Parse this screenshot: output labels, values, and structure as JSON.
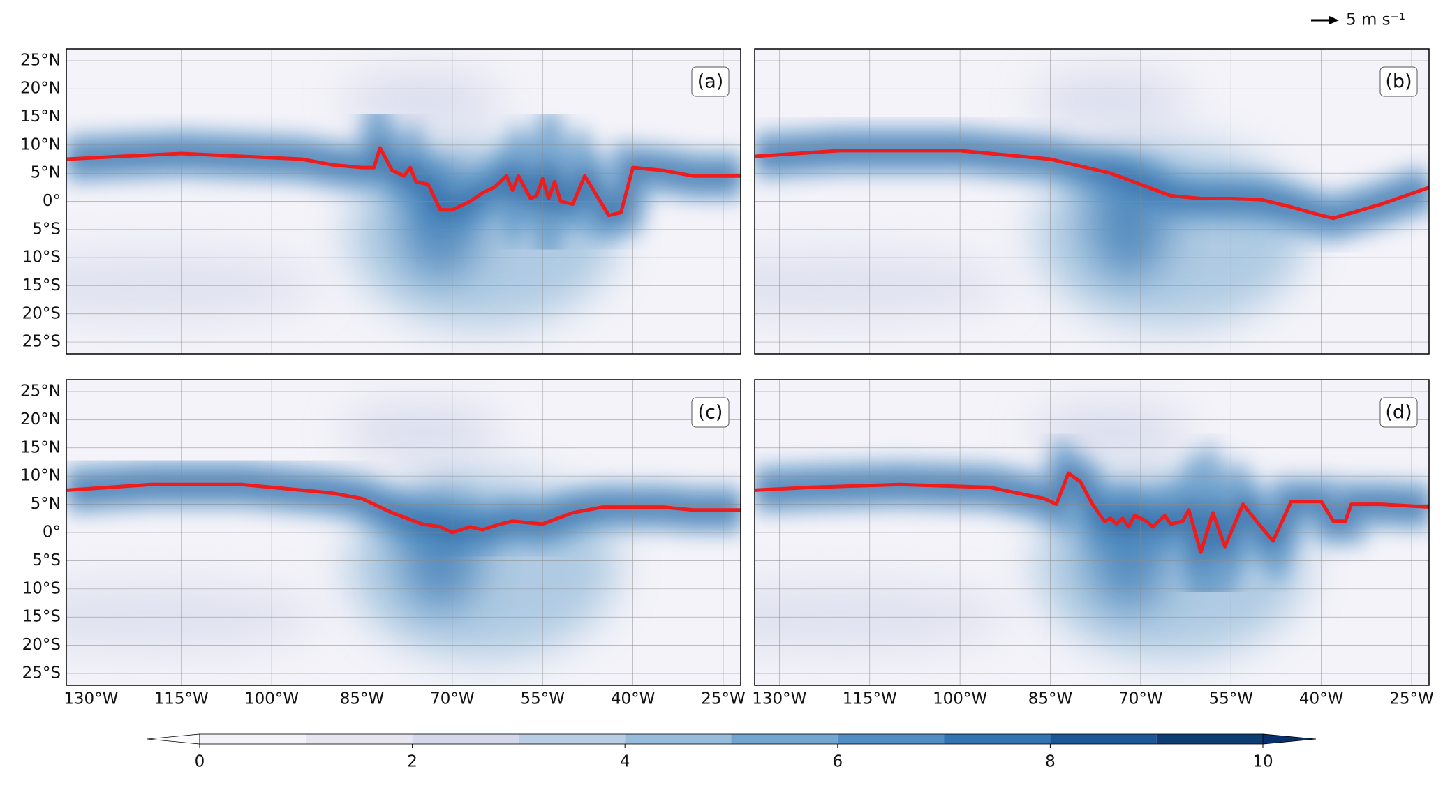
{
  "figure": {
    "scale_label": "5 m s⁻¹",
    "xlim": [
      -134.1,
      -22.1
    ],
    "ylim": [
      -27.1,
      27.1
    ],
    "xticks": [
      {
        "value": -130,
        "label": "130°W"
      },
      {
        "value": -115,
        "label": "115°W"
      },
      {
        "value": -100,
        "label": "100°W"
      },
      {
        "value": -85,
        "label": "85°W"
      },
      {
        "value": -70,
        "label": "70°W"
      },
      {
        "value": -55,
        "label": "55°W"
      },
      {
        "value": -40,
        "label": "40°W"
      },
      {
        "value": -25,
        "label": "25°W"
      }
    ],
    "yticks": [
      {
        "value": 25,
        "label": "25°N"
      },
      {
        "value": 20,
        "label": "20°N"
      },
      {
        "value": 15,
        "label": "15°N"
      },
      {
        "value": 10,
        "label": "10°N"
      },
      {
        "value": 5,
        "label": "5°N"
      },
      {
        "value": 0,
        "label": "0°"
      },
      {
        "value": -5,
        "label": "5°S"
      },
      {
        "value": -10,
        "label": "10°S"
      },
      {
        "value": -15,
        "label": "15°S"
      },
      {
        "value": -20,
        "label": "20°S"
      },
      {
        "value": -25,
        "label": "25°S"
      }
    ],
    "line_color": "#ee1c1c",
    "panels": [
      {
        "label": "(a)",
        "itcz": {
          "lon": [
            -134,
            -125,
            -115,
            -105,
            -95,
            -90,
            -85,
            -83,
            -82,
            -80,
            -78,
            -77,
            -76,
            -74,
            -72,
            -70,
            -67,
            -65,
            -63,
            -61,
            -60,
            -59,
            -57,
            -56,
            -55,
            -54,
            -53,
            -52,
            -50,
            -48,
            -46,
            -44,
            -42,
            -40,
            -35,
            -30,
            -25,
            -22
          ],
          "lat": [
            7.5,
            8,
            8.5,
            8,
            7.5,
            6.5,
            6,
            6,
            9.5,
            5.5,
            4.5,
            6,
            3.5,
            3,
            -1.5,
            -1.5,
            0,
            1.5,
            2.5,
            4.5,
            2,
            4.5,
            0.5,
            1,
            4,
            0.5,
            3.5,
            0,
            -0.5,
            4.5,
            1,
            -2.5,
            -2,
            6,
            5.5,
            4.5,
            4.5,
            4.5
          ]
        }
      },
      {
        "label": "(b)",
        "itcz": {
          "lon": [
            -134,
            -120,
            -100,
            -90,
            -85,
            -75,
            -70,
            -65,
            -60,
            -55,
            -50,
            -45,
            -40,
            -38,
            -30,
            -22
          ],
          "lat": [
            8,
            9,
            9,
            8,
            7.5,
            5,
            3,
            1,
            0.5,
            0.5,
            0.3,
            -1,
            -2.5,
            -3,
            -0.5,
            2.5
          ]
        }
      },
      {
        "label": "(c)",
        "itcz": {
          "lon": [
            -134,
            -120,
            -105,
            -90,
            -85,
            -80,
            -75,
            -72,
            -70,
            -67,
            -65,
            -62,
            -60,
            -55,
            -50,
            -45,
            -40,
            -35,
            -30,
            -22
          ],
          "lat": [
            7.5,
            8.5,
            8.5,
            7,
            6,
            3.5,
            1.5,
            1,
            0,
            1,
            0.5,
            1.5,
            2,
            1.5,
            3.5,
            4.5,
            4.5,
            4.5,
            4,
            4
          ]
        }
      },
      {
        "label": "(d)",
        "itcz": {
          "lon": [
            -134,
            -125,
            -110,
            -95,
            -86,
            -84,
            -82,
            -80,
            -78,
            -76,
            -75,
            -74,
            -73,
            -72,
            -71,
            -69,
            -68,
            -66,
            -65,
            -63,
            -62,
            -60,
            -58,
            -56,
            -53,
            -50,
            -48,
            -45,
            -40,
            -38,
            -36,
            -35,
            -30,
            -22
          ],
          "lat": [
            7.5,
            8,
            8.5,
            8,
            6,
            5,
            10.5,
            9,
            5,
            2,
            2.5,
            1.5,
            2.5,
            1,
            3,
            2,
            1,
            3,
            1.5,
            2,
            4,
            -3.5,
            3.5,
            -2.5,
            5,
            1,
            -1.5,
            5.5,
            5.5,
            2,
            2,
            5,
            5,
            4.5
          ]
        }
      }
    ],
    "colorbar": {
      "lim": [
        0,
        10
      ],
      "ticks": [
        0,
        2,
        4,
        6,
        8,
        10
      ],
      "levels": [
        0,
        1,
        2,
        3,
        4,
        5,
        6,
        7,
        8,
        9,
        10
      ],
      "colors": [
        "#f4f3f9",
        "#e6e5f0",
        "#d3d8ea",
        "#b9cde4",
        "#98bddb",
        "#72a6d0",
        "#4f8dc2",
        "#3273b1",
        "#1b5797",
        "#0c3e74"
      ],
      "under_color": "#fcfbfd",
      "over_color": "#08306b"
    }
  }
}
